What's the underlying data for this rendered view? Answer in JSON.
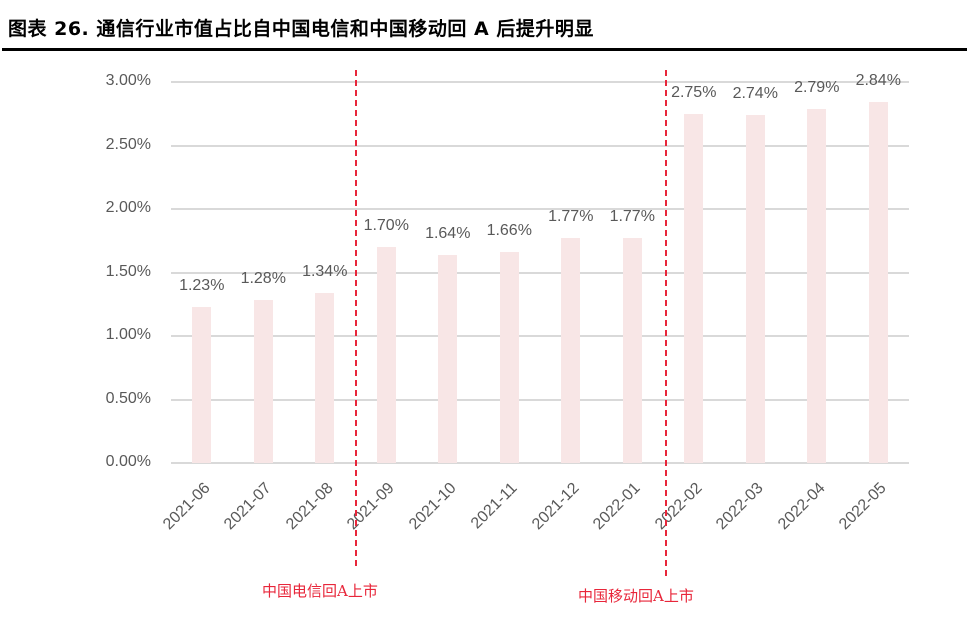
{
  "title": "图表 26. 通信行业市值占比自中国电信和中国移动回 A 后提升明显",
  "chart_data": {
    "type": "bar",
    "title": "图表 26. 通信行业市值占比自中国电信和中国移动回 A 后提升明显",
    "xlabel": "",
    "ylabel": "",
    "categories": [
      "2021-06",
      "2021-07",
      "2021-08",
      "2021-09",
      "2021-10",
      "2021-11",
      "2021-12",
      "2022-01",
      "2022-02",
      "2022-03",
      "2022-04",
      "2022-05"
    ],
    "values": [
      1.23,
      1.28,
      1.34,
      1.7,
      1.64,
      1.66,
      1.77,
      1.77,
      2.75,
      2.74,
      2.79,
      2.84
    ],
    "data_labels": [
      "1.23%",
      "1.28%",
      "1.34%",
      "1.70%",
      "1.64%",
      "1.66%",
      "1.77%",
      "1.77%",
      "2.75%",
      "2.74%",
      "2.79%",
      "2.84%"
    ],
    "unit": "%",
    "ylim": [
      0,
      3.0
    ],
    "yticks": [
      "0.00%",
      "0.50%",
      "1.00%",
      "1.50%",
      "2.00%",
      "2.50%",
      "3.00%"
    ],
    "grid": true,
    "legend": null,
    "bar_color": "#f8e6e6",
    "annotations": [
      {
        "text": "中国电信回A上市",
        "between": [
          "2021-08",
          "2021-09"
        ],
        "style": "dashed-vertical-line",
        "color": "#e8263a"
      },
      {
        "text": "中国移动回A上市",
        "between": [
          "2022-01",
          "2022-02"
        ],
        "style": "dashed-vertical-line",
        "color": "#e8263a"
      }
    ]
  }
}
